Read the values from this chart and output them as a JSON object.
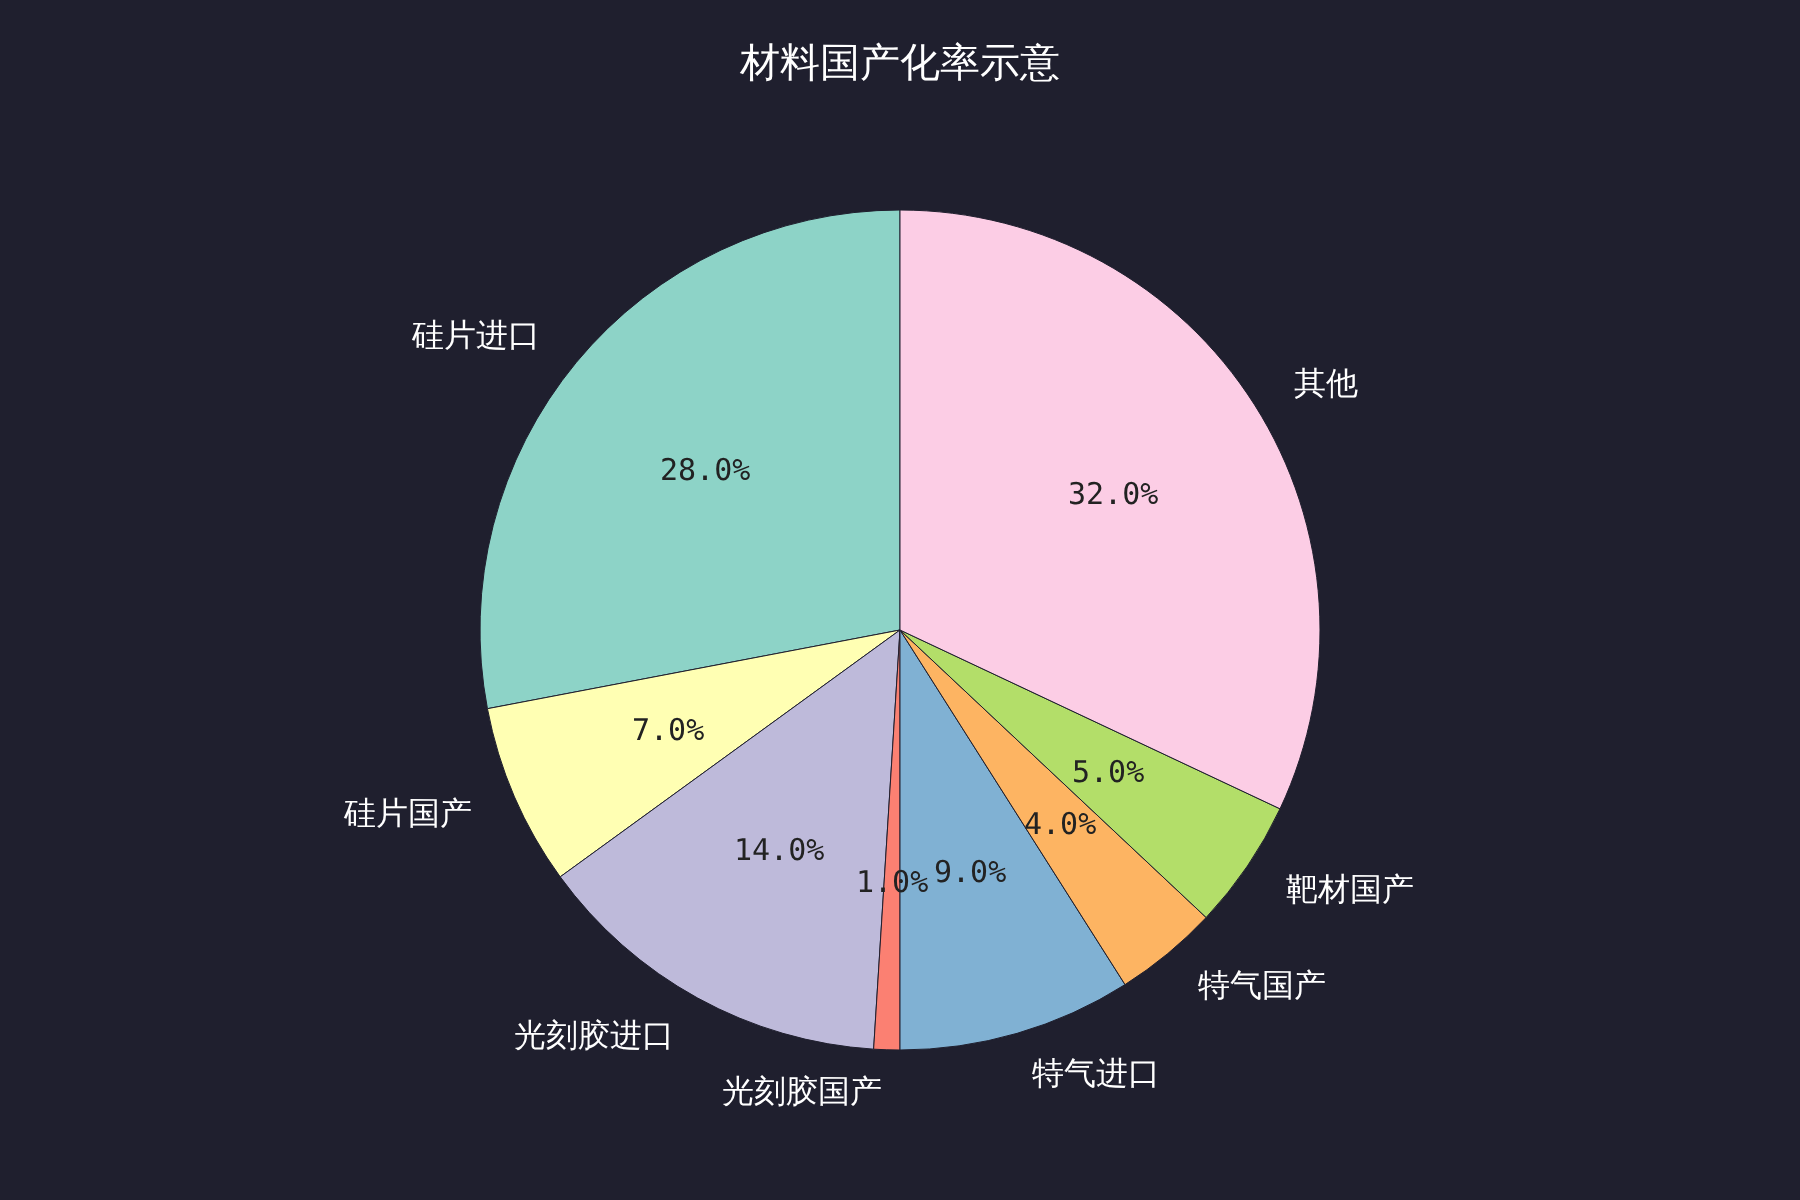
{
  "chart_data": {
    "type": "pie",
    "title": "材料国产化率示意",
    "categories": [
      "硅片进口",
      "硅片国产",
      "光刻胶进口",
      "光刻胶国产",
      "特气进口",
      "特气国产",
      "靶材国产",
      "其他"
    ],
    "values": [
      28,
      7,
      14,
      1,
      9,
      4,
      5,
      32
    ],
    "value_labels": [
      "28.0%",
      "7.0%",
      "14.0%",
      "1.0%",
      "9.0%",
      "4.0%",
      "5.0%",
      "32.0%"
    ],
    "colors": [
      "#8dd3c7",
      "#ffffb3",
      "#bebada",
      "#fb8072",
      "#80b1d3",
      "#fdb462",
      "#b3de69",
      "#fccde5"
    ],
    "legend": false
  }
}
